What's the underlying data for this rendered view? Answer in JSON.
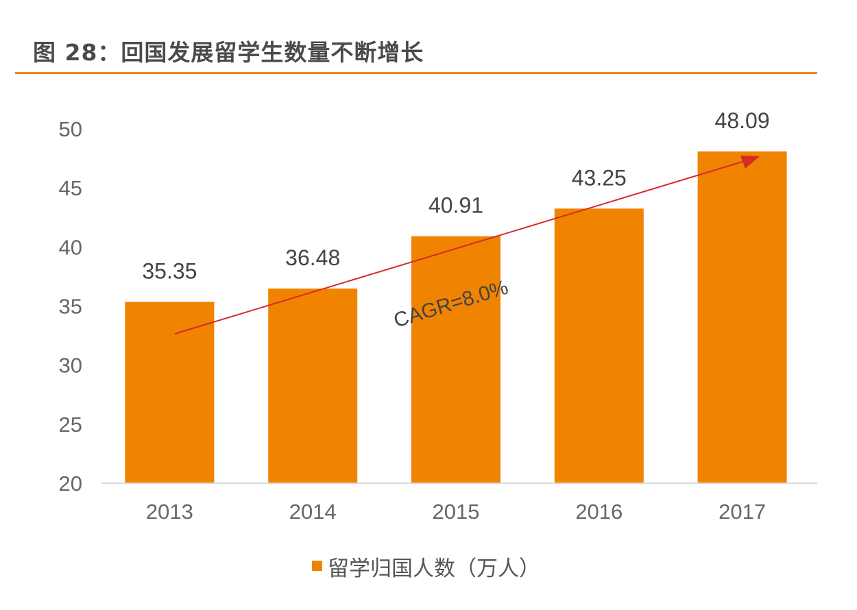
{
  "title": "图 28：回国发展留学生数量不断增长",
  "colors": {
    "bar": "#F08300",
    "rule": "#F08A24",
    "arrow": "#D62A28"
  },
  "chart_data": {
    "type": "bar",
    "title": "图 28：回国发展留学生数量不断增长",
    "categories": [
      "2013",
      "2014",
      "2015",
      "2016",
      "2017"
    ],
    "series": [
      {
        "name": "留学归国人数（万人）",
        "values": [
          35.35,
          36.48,
          40.91,
          43.25,
          48.09
        ]
      }
    ],
    "data_labels": [
      "35.35",
      "36.48",
      "40.91",
      "43.25",
      "48.09"
    ],
    "ylim": [
      20,
      50
    ],
    "yticks": [
      20,
      25,
      30,
      35,
      40,
      45,
      50
    ],
    "grid": false,
    "legend": "bottom",
    "annotation": {
      "text": "CAGR=8.0%",
      "trend_arrow": true
    }
  }
}
